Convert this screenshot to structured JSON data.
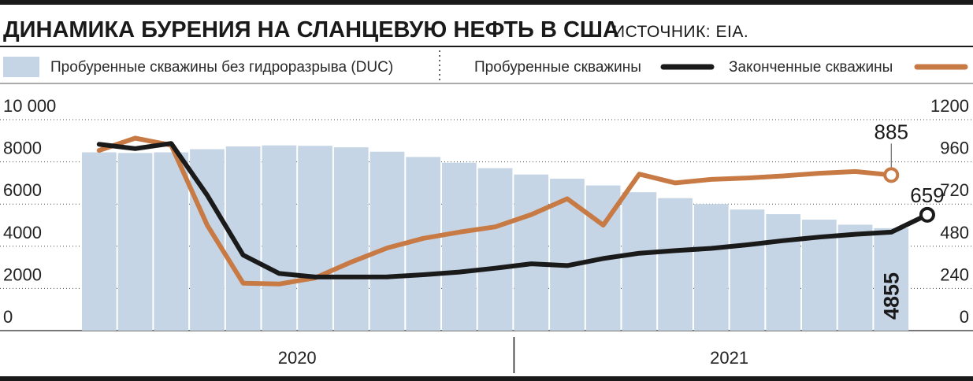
{
  "header": {
    "title": "ДИНАМИКА БУРЕНИЯ НА СЛАНЦЕВУЮ НЕФТЬ В США",
    "source": "ИСТОЧНИК: EIA."
  },
  "colors": {
    "bars": "#c5d5e5",
    "drilled_line": "#1a1a1a",
    "completed_line": "#c87a45",
    "rule": "#1a1a1a",
    "grid": "#4a4a4a"
  },
  "chart_data": {
    "type": "bar",
    "categories": [
      "",
      "",
      "",
      "",
      "",
      "",
      "",
      "",
      "",
      "",
      "",
      "",
      "",
      "",
      "",
      "",
      "",
      "",
      "",
      "",
      "",
      "",
      "",
      ""
    ],
    "year_groups": [
      {
        "label": "2020",
        "start_index": 0,
        "end_index": 11
      },
      {
        "label": "2021",
        "start_index": 12,
        "end_index": 23
      }
    ],
    "left_axis": {
      "ticks": [
        "0",
        "2000",
        "4000",
        "6000",
        "8000",
        "10 000"
      ],
      "ylim": [
        0,
        10000
      ]
    },
    "right_axis": {
      "ticks": [
        "0",
        "240",
        "480",
        "720",
        "960",
        "1200"
      ],
      "ylim": [
        0,
        1200
      ]
    },
    "series": [
      {
        "name": "Пробуренные скважины без гидроразрыва (DUC)",
        "type": "bar",
        "axis": "left",
        "values": [
          8450,
          8420,
          8450,
          8600,
          8730,
          8780,
          8760,
          8690,
          8480,
          8230,
          7960,
          7700,
          7400,
          7200,
          6880,
          6560,
          6280,
          6000,
          5740,
          5520,
          5260,
          5020,
          4855,
          null
        ]
      },
      {
        "name": "Пробуренные скважины",
        "type": "line",
        "axis": "right",
        "values": [
          1060,
          1035,
          1065,
          770,
          430,
          325,
          305,
          305,
          306,
          318,
          333,
          355,
          380,
          370,
          410,
          440,
          455,
          468,
          488,
          512,
          532,
          548,
          560,
          659
        ]
      },
      {
        "name": "Законченные скважины",
        "type": "line",
        "axis": "right",
        "values": [
          1025,
          1095,
          1055,
          600,
          270,
          265,
          300,
          390,
          470,
          525,
          560,
          590,
          660,
          750,
          600,
          890,
          840,
          860,
          868,
          880,
          895,
          905,
          885,
          null
        ]
      }
    ],
    "annotations": {
      "completed_last": "885",
      "drilled_last": "659",
      "duc_last": "4855"
    },
    "legend_position": "top",
    "grid": true
  }
}
